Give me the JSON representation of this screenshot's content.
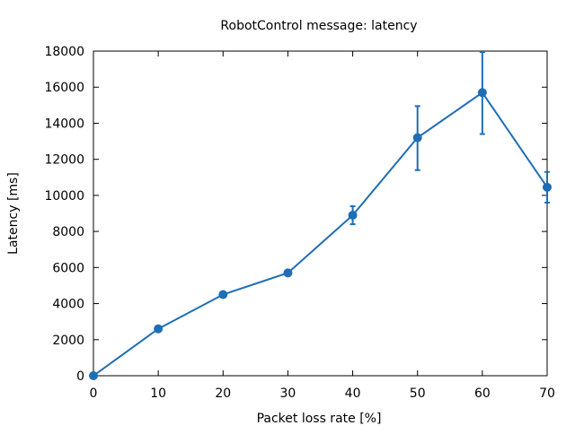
{
  "chart_data": {
    "type": "line",
    "title": "RobotControl message: latency",
    "xlabel": "Packet loss rate [%]",
    "ylabel": "Latency [ms]",
    "xlim": [
      0,
      70
    ],
    "ylim": [
      0,
      18000
    ],
    "xticks": [
      0,
      10,
      20,
      30,
      40,
      50,
      60,
      70
    ],
    "yticks": [
      0,
      2000,
      4000,
      6000,
      8000,
      10000,
      12000,
      14000,
      16000,
      18000
    ],
    "grid": false,
    "legend": "none",
    "series": [
      {
        "color": "#1f6eb5",
        "points": [
          {
            "x": 0,
            "y": 0,
            "err_low": 0,
            "err_high": 0
          },
          {
            "x": 10,
            "y": 2600,
            "err_low": 2550,
            "err_high": 2650
          },
          {
            "x": 20,
            "y": 4500,
            "err_low": 4400,
            "err_high": 4600
          },
          {
            "x": 30,
            "y": 5700,
            "err_low": 5650,
            "err_high": 5750
          },
          {
            "x": 40,
            "y": 8900,
            "err_low": 8400,
            "err_high": 9400
          },
          {
            "x": 50,
            "y": 13200,
            "err_low": 11400,
            "err_high": 14950
          },
          {
            "x": 60,
            "y": 15700,
            "err_low": 13400,
            "err_high": 17950
          },
          {
            "x": 70,
            "y": 10450,
            "err_low": 9600,
            "err_high": 11300
          }
        ]
      }
    ]
  }
}
